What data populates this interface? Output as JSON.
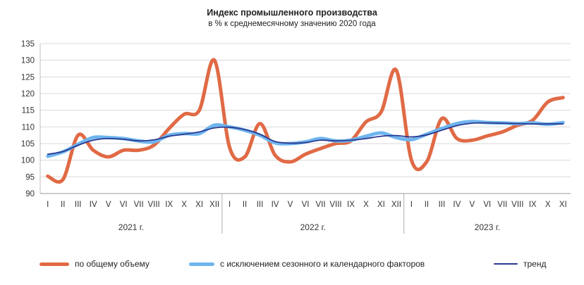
{
  "chart_data": {
    "type": "line",
    "title": "Индекс промышленного производства",
    "subtitle": "в % к среднемесячному значению 2020 года",
    "ylim": [
      90,
      135
    ],
    "yticks": [
      90,
      95,
      100,
      105,
      110,
      115,
      120,
      125,
      130,
      135
    ],
    "grid": true,
    "legend_position": "bottom",
    "categories": [
      "I",
      "II",
      "III",
      "IV",
      "V",
      "VI",
      "VII",
      "VIII",
      "IX",
      "X",
      "XI",
      "XII",
      "I",
      "II",
      "III",
      "IV",
      "V",
      "VI",
      "VII",
      "VIII",
      "IX",
      "X",
      "XI",
      "XII",
      "I",
      "II",
      "III",
      "IV",
      "V",
      "VI",
      "VII",
      "VIII",
      "IX",
      "X",
      "XI"
    ],
    "years": [
      {
        "label": "2021 г.",
        "start": 0,
        "end": 11
      },
      {
        "label": "2022 г.",
        "start": 12,
        "end": 23
      },
      {
        "label": "2023 г.",
        "start": 24,
        "end": 34
      }
    ],
    "series": [
      {
        "name": "по общему объему",
        "color": "#E06A45",
        "values": [
          95.2,
          94.2,
          107.5,
          103.0,
          101.0,
          103.0,
          103.0,
          104.5,
          109.5,
          113.8,
          115.0,
          130.0,
          103.8,
          101.0,
          111.0,
          101.5,
          99.5,
          101.8,
          103.5,
          105.0,
          105.8,
          111.5,
          114.5,
          127.0,
          100.0,
          99.5,
          112.5,
          106.5,
          106.0,
          107.3,
          108.5,
          110.5,
          112.0,
          117.5,
          118.8
        ]
      },
      {
        "name": "с исключением сезонного и календарного факторов",
        "color": "#6FB5EE",
        "values": [
          101.2,
          102.5,
          104.8,
          106.8,
          106.8,
          106.5,
          105.8,
          105.5,
          107.5,
          108.0,
          108.0,
          110.5,
          110.0,
          109.0,
          107.5,
          105.2,
          105.0,
          105.5,
          106.5,
          105.8,
          106.0,
          107.2,
          108.2,
          106.8,
          106.2,
          107.8,
          109.5,
          111.0,
          111.6,
          111.3,
          111.2,
          111.0,
          111.2,
          110.8,
          111.3
        ]
      },
      {
        "name": "тренд",
        "color": "#2B3990",
        "values": [
          101.8,
          102.6,
          104.5,
          106.0,
          106.5,
          106.3,
          105.8,
          106.1,
          107.2,
          107.8,
          108.5,
          109.7,
          109.9,
          109.2,
          107.8,
          105.6,
          105.1,
          105.3,
          106.0,
          105.8,
          106.0,
          106.5,
          107.2,
          107.4,
          107.0,
          107.6,
          109.0,
          110.4,
          111.1,
          111.2,
          111.1,
          111.0,
          110.9,
          110.9,
          110.9
        ]
      }
    ]
  }
}
